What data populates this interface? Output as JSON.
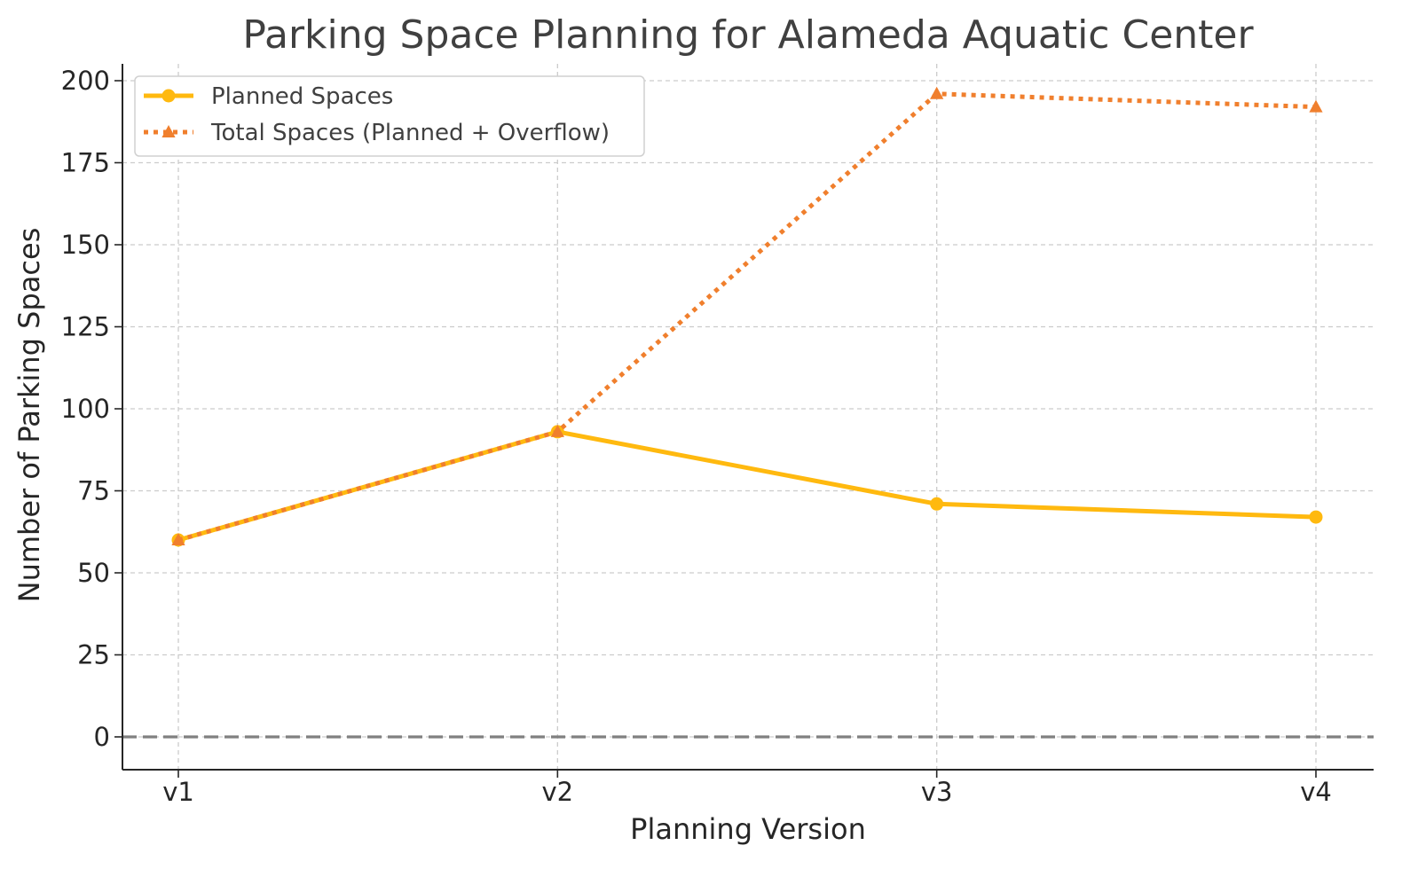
{
  "chart_data": {
    "type": "line",
    "title": "Parking Space Planning for Alameda Aquatic Center",
    "xlabel": "Planning Version",
    "ylabel": "Number of Parking Spaces",
    "categories": [
      "v1",
      "v2",
      "v3",
      "v4"
    ],
    "ylim": [
      -10,
      205
    ],
    "yticks": [
      0,
      25,
      50,
      75,
      100,
      125,
      150,
      175,
      200
    ],
    "grid": true,
    "legend_position": "top-left",
    "reference_line": {
      "y": 0,
      "style": "dashed",
      "color": "#808080"
    },
    "series": [
      {
        "name": "Planned Spaces",
        "values": [
          60,
          93,
          71,
          67
        ],
        "color": "#FFB90F",
        "line_style": "solid",
        "marker": "circle"
      },
      {
        "name": "Total Spaces (Planned + Overflow)",
        "values": [
          60,
          93,
          196,
          192
        ],
        "color": "#F07F2D",
        "line_style": "dotted",
        "marker": "triangle"
      }
    ]
  }
}
